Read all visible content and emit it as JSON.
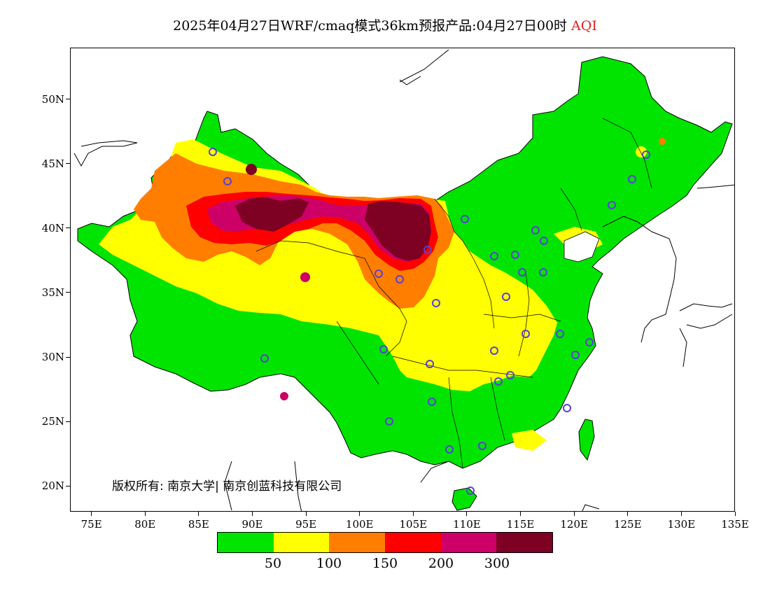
{
  "title": {
    "text": "2025年04月27日WRF/cmaq模式36km预报产品:04月27日00时",
    "variable": "AQI",
    "variable_color": "#e02020"
  },
  "map": {
    "lon_range": [
      73,
      135
    ],
    "lat_range": [
      18,
      54
    ],
    "x_ticks": [
      "75E",
      "80E",
      "85E",
      "90E",
      "95E",
      "100E",
      "105E",
      "110E",
      "115E",
      "120E",
      "125E",
      "130E",
      "135E"
    ],
    "y_ticks": [
      "20N",
      "25N",
      "30N",
      "35N",
      "40N",
      "45N",
      "50N"
    ]
  },
  "copyright": "版权所有: 南京大学| 南京创蓝科技有限公司",
  "legend": {
    "colors": [
      "#00e400",
      "#ffff00",
      "#ff7e00",
      "#ff0000",
      "#cc0066",
      "#7e0023"
    ],
    "labels": [
      "50",
      "100",
      "150",
      "200",
      "300"
    ]
  }
}
